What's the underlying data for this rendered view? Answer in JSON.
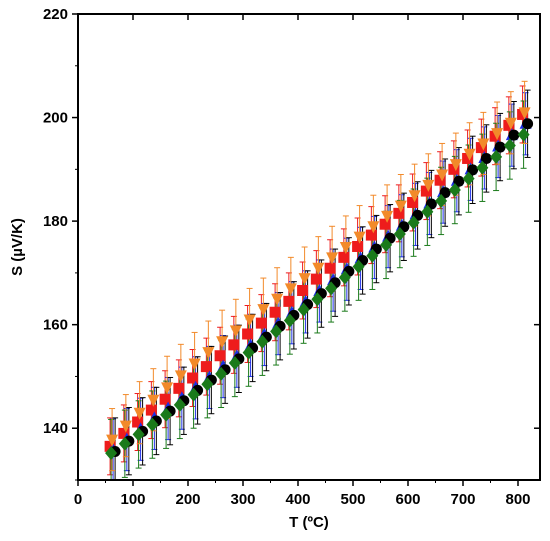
{
  "chart_data": {
    "type": "scatter",
    "title": "",
    "xlabel": "T (ºC)",
    "ylabel": "S (µV/K)",
    "xlim": [
      0,
      840
    ],
    "ylim": [
      130,
      220
    ],
    "xticks": [
      0,
      100,
      200,
      300,
      400,
      500,
      600,
      700,
      800
    ],
    "yticks": [
      140,
      160,
      180,
      200,
      220
    ],
    "grid": false,
    "legend": "none",
    "x": [
      62,
      87,
      112,
      137,
      162,
      187,
      212,
      237,
      262,
      287,
      312,
      337,
      362,
      387,
      412,
      437,
      462,
      487,
      512,
      537,
      562,
      587,
      612,
      637,
      662,
      687,
      712,
      737,
      762,
      787,
      812
    ],
    "series": [
      {
        "marker": "square",
        "color": "#ee1c1c",
        "values": [
          136.5,
          139.0,
          141.2,
          143.5,
          145.6,
          147.7,
          149.7,
          151.9,
          154.0,
          156.1,
          158.2,
          160.3,
          162.4,
          164.5,
          166.6,
          168.8,
          170.9,
          173.0,
          175.1,
          177.3,
          179.4,
          181.5,
          183.6,
          185.8,
          187.9,
          190.0,
          192.1,
          194.2,
          196.4,
          198.5,
          200.6
        ],
        "error": 5.5
      },
      {
        "marker": "triangle-up",
        "color": "#1c2ee8",
        "values": [
          135.8,
          137.8,
          139.8,
          141.9,
          143.8,
          145.8,
          147.8,
          149.8,
          151.9,
          153.9,
          156.0,
          158.1,
          160.2,
          162.3,
          164.4,
          166.5,
          168.6,
          170.7,
          172.8,
          174.9,
          177.0,
          179.1,
          181.3,
          183.4,
          185.6,
          187.8,
          190.0,
          192.2,
          194.4,
          196.6,
          198.8
        ],
        "error": 6.0
      },
      {
        "marker": "circle",
        "color": "#000000",
        "values": [
          135.5,
          137.5,
          139.4,
          141.4,
          143.3,
          145.3,
          147.3,
          149.3,
          151.3,
          153.4,
          155.5,
          157.6,
          159.7,
          161.8,
          163.9,
          166.0,
          168.1,
          170.3,
          172.4,
          174.6,
          176.7,
          178.9,
          181.1,
          183.3,
          185.5,
          187.7,
          189.9,
          192.1,
          194.3,
          196.6,
          198.8
        ],
        "error": 6.5
      },
      {
        "marker": "diamond",
        "color": "#1a7a1a",
        "values": [
          135.2,
          137.0,
          138.8,
          140.7,
          142.6,
          144.5,
          146.5,
          148.5,
          150.5,
          152.6,
          154.6,
          156.7,
          158.7,
          160.8,
          162.9,
          164.9,
          167.0,
          169.1,
          171.2,
          173.3,
          175.4,
          177.5,
          179.7,
          181.8,
          183.9,
          186.0,
          188.2,
          190.3,
          192.4,
          194.6,
          196.7
        ],
        "error": 6.5
      },
      {
        "marker": "triangle-down",
        "color": "#f28a2a",
        "values": [
          137.8,
          140.5,
          143.0,
          145.5,
          147.9,
          150.2,
          152.5,
          154.7,
          156.8,
          158.9,
          161.0,
          163.0,
          165.0,
          167.0,
          169.0,
          171.0,
          173.0,
          175.0,
          177.0,
          179.0,
          181.0,
          183.0,
          185.0,
          187.0,
          189.0,
          191.0,
          193.0,
          195.0,
          197.0,
          199.0,
          201.0
        ],
        "error": 6.0
      }
    ]
  }
}
